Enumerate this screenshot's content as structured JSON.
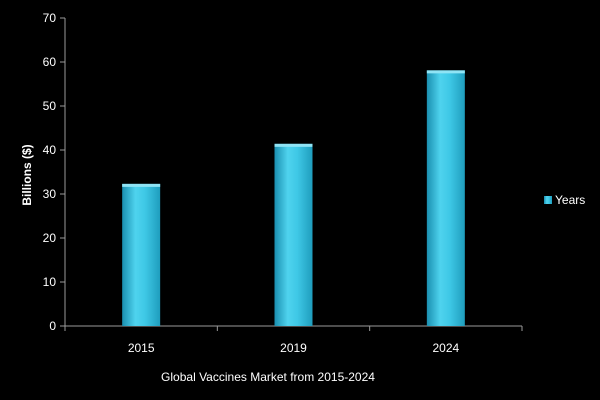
{
  "chart_data": {
    "type": "bar",
    "categories": [
      "2015",
      "2019",
      "2024"
    ],
    "series": [
      {
        "name": "Years",
        "values": [
          32.3,
          41.4,
          58.1
        ]
      }
    ],
    "title": "",
    "xlabel": "Global Vaccines Market from 2015-2024",
    "ylabel": "Billions  ($)",
    "ylim": [
      0,
      70
    ],
    "yticks": [
      0,
      10,
      20,
      30,
      40,
      50,
      60,
      70
    ],
    "grid": false,
    "legend_position": "right",
    "colors": {
      "background": "#000000",
      "bar_main": "#3ec8e6",
      "bar_light": "#8fe4f5",
      "bar_dark": "#1a8fb0",
      "axis": "#9a9a9a",
      "text": "#ffffff"
    }
  }
}
